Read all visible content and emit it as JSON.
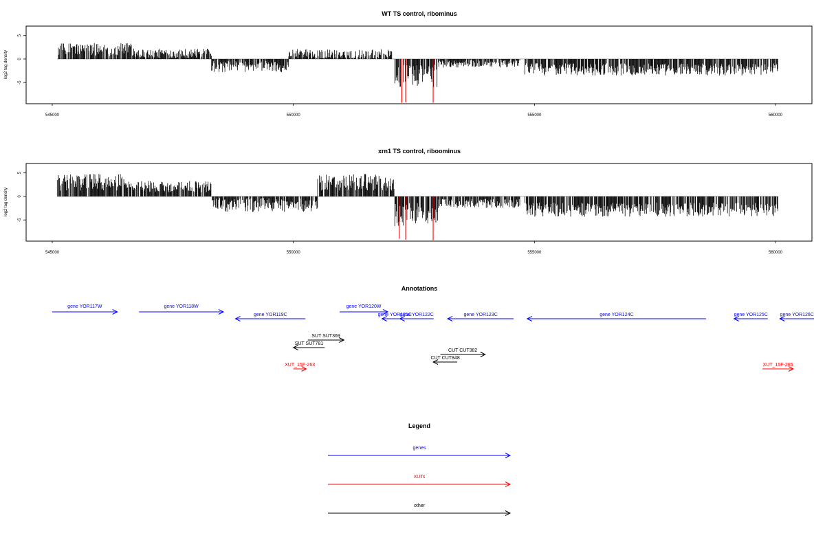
{
  "chart_data": [
    {
      "type": "bar",
      "title": "WT TS control, ribominus",
      "ylabel": "log2 tag density",
      "xlim": [
        544800,
        560300
      ],
      "ylim": [
        -9.5,
        7
      ],
      "x_ticks": [
        "545000",
        "550000",
        "555000",
        "560000"
      ],
      "y_ticks": [
        "5",
        "0",
        "-5"
      ],
      "profile": {
        "segments": [
          {
            "x": [
              545100,
              546700
            ],
            "strand": "+",
            "mean": 2.0,
            "amp": 1.4
          },
          {
            "x": [
              546700,
              548300
            ],
            "strand": "+",
            "mean": 1.2,
            "amp": 1.0
          },
          {
            "x": [
              548300,
              549900
            ],
            "strand": "-",
            "mean": -1.6,
            "amp": 1.2
          },
          {
            "x": [
              549900,
              552050
            ],
            "strand": "+",
            "mean": 1.0,
            "amp": 1.1
          },
          {
            "x": [
              552100,
              553000
            ],
            "strand": "-",
            "mean": -3.6,
            "amp": 2.4
          },
          {
            "x": [
              553000,
              554700
            ],
            "strand": "-",
            "mean": -1.0,
            "amp": 0.8
          },
          {
            "x": [
              554800,
              560050
            ],
            "strand": "-",
            "mean": -2.2,
            "amp": 1.3
          }
        ],
        "highlighted": [
          {
            "x": 552250,
            "value": -9.3
          },
          {
            "x": 552330,
            "value": -9.2
          },
          {
            "x": 552900,
            "value": -9.3
          }
        ]
      }
    },
    {
      "type": "bar",
      "title": "xrn1 TS control, riboominus",
      "ylabel": "log2 tag density",
      "xlim": [
        544800,
        560300
      ],
      "ylim": [
        -9.5,
        7
      ],
      "x_ticks": [
        "545000",
        "550000",
        "555000",
        "560000"
      ],
      "y_ticks": [
        "5",
        "0",
        "-5"
      ],
      "profile": {
        "segments": [
          {
            "x": [
              545100,
              546500
            ],
            "strand": "+",
            "mean": 3.0,
            "amp": 1.8
          },
          {
            "x": [
              546500,
              548300
            ],
            "strand": "+",
            "mean": 2.1,
            "amp": 1.2
          },
          {
            "x": [
              548300,
              550500
            ],
            "strand": "-",
            "mean": -1.8,
            "amp": 1.5
          },
          {
            "x": [
              550500,
              552100
            ],
            "strand": "+",
            "mean": 3.0,
            "amp": 1.8
          },
          {
            "x": [
              552100,
              553000
            ],
            "strand": "-",
            "mean": -3.9,
            "amp": 2.5
          },
          {
            "x": [
              553000,
              554700
            ],
            "strand": "-",
            "mean": -1.5,
            "amp": 1.0
          },
          {
            "x": [
              554800,
              560050
            ],
            "strand": "-",
            "mean": -2.8,
            "amp": 1.5
          }
        ],
        "highlighted": [
          {
            "x": 552200,
            "value": -9.0
          },
          {
            "x": 552330,
            "value": -9.2
          },
          {
            "x": 552900,
            "value": -9.3
          }
        ]
      }
    }
  ],
  "annotations": {
    "title": "Annotations",
    "features": [
      {
        "label": "gene YOR117W",
        "start": 545000,
        "end": 546350,
        "strand": "+",
        "color": "#0000ff",
        "row": 0
      },
      {
        "label": "gene YOR118W",
        "start": 546800,
        "end": 548550,
        "strand": "+",
        "color": "#0000ff",
        "row": 0
      },
      {
        "label": "gene YOR119C",
        "start": 548800,
        "end": 550250,
        "strand": "-",
        "color": "#0000ff",
        "row": 1
      },
      {
        "label": "gene YOR120W",
        "start": 550960,
        "end": 551960,
        "strand": "+",
        "color": "#0000ff",
        "row": 0
      },
      {
        "label": "gene YOR121C",
        "start": 551840,
        "end": 552370,
        "strand": "-",
        "color": "#0000ff",
        "row": 1
      },
      {
        "label": "gene YOR122C",
        "start": 552210,
        "end": 552910,
        "strand": "-",
        "color": "#0000ff",
        "row": 1
      },
      {
        "label": "gene YOR123C",
        "start": 553200,
        "end": 554570,
        "strand": "-",
        "color": "#0000ff",
        "row": 1
      },
      {
        "label": "gene YOR124C",
        "start": 554850,
        "end": 558560,
        "strand": "-",
        "color": "#0000ff",
        "row": 1
      },
      {
        "label": "gene YOR125C",
        "start": 559140,
        "end": 559840,
        "strand": "-",
        "color": "#0000ff",
        "row": 1
      },
      {
        "label": "gene YOR126C",
        "start": 560090,
        "end": 560800,
        "strand": "-",
        "color": "#0000ff",
        "row": 1
      },
      {
        "label": "SUT SUT369",
        "start": 550300,
        "end": 551050,
        "strand": "+",
        "color": "#000000",
        "row": 3
      },
      {
        "label": "SUT SUT781",
        "start": 550000,
        "end": 550650,
        "strand": "-",
        "color": "#000000",
        "row": 4
      },
      {
        "label": "CUT CUT382",
        "start": 553050,
        "end": 553980,
        "strand": "+",
        "color": "#000000",
        "row": 5
      },
      {
        "label": "CUT CUT848",
        "start": 552900,
        "end": 553400,
        "strand": "-",
        "color": "#000000",
        "row": 6
      },
      {
        "label": "XUT_15F-263",
        "start": 550000,
        "end": 550270,
        "strand": "+",
        "color": "#ff0000",
        "row": 7
      },
      {
        "label": "XUT_15F-265",
        "start": 559730,
        "end": 560370,
        "strand": "+",
        "color": "#ff0000",
        "row": 7
      }
    ]
  },
  "legend": {
    "title": "Legend",
    "items": [
      {
        "label": "genes",
        "color": "#0000ff"
      },
      {
        "label": "XUTs",
        "color": "#ff0000"
      },
      {
        "label": "other",
        "color": "#000000"
      }
    ]
  }
}
